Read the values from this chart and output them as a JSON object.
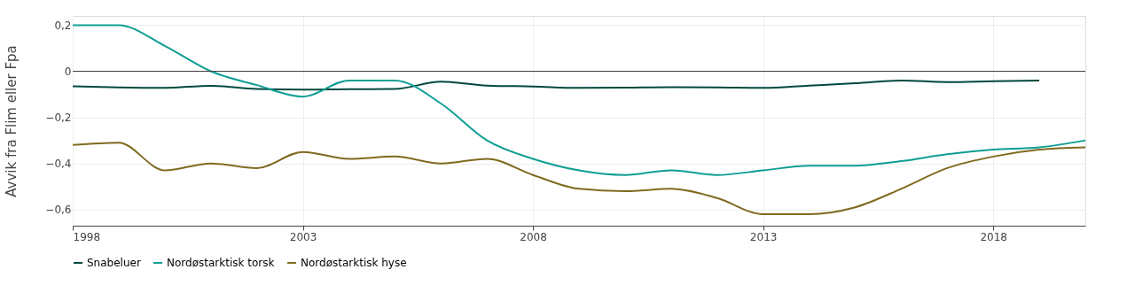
{
  "chart_data": {
    "type": "line",
    "ylabel": "Avvik fra Flim eller Fpa",
    "x": [
      1998,
      1999,
      2000,
      2001,
      2002,
      2003,
      2004,
      2005,
      2006,
      2007,
      2008,
      2009,
      2010,
      2011,
      2012,
      2013,
      2014,
      2015,
      2016,
      2017,
      2018,
      2019,
      2020
    ],
    "series": [
      {
        "name": "Snabeluer",
        "color": "#00493f",
        "values": [
          -0.065,
          -0.07,
          -0.072,
          -0.063,
          -0.077,
          -0.08,
          -0.078,
          -0.077,
          -0.045,
          -0.062,
          -0.066,
          -0.072,
          -0.071,
          -0.069,
          -0.07,
          -0.072,
          -0.062,
          -0.052,
          -0.04,
          -0.047,
          -0.043,
          -0.04,
          null
        ]
      },
      {
        "name": "Nordøstarktisk torsk",
        "color": "#0e9e94",
        "values": [
          0.2,
          0.2,
          0.11,
          0.0,
          -0.06,
          -0.11,
          -0.04,
          -0.04,
          -0.14,
          -0.3,
          -0.38,
          -0.43,
          -0.45,
          -0.43,
          -0.45,
          -0.43,
          -0.41,
          -0.41,
          -0.39,
          -0.36,
          -0.34,
          -0.33,
          -0.3
        ]
      },
      {
        "name": "Nordøstarktisk hyse",
        "color": "#7f6a1f",
        "values": [
          -0.32,
          -0.31,
          -0.43,
          -0.4,
          -0.42,
          -0.35,
          -0.38,
          -0.37,
          -0.4,
          -0.38,
          -0.45,
          -0.51,
          -0.52,
          -0.51,
          -0.55,
          -0.62,
          -0.62,
          -0.59,
          -0.51,
          -0.42,
          -0.37,
          -0.34,
          -0.33
        ]
      }
    ],
    "xlim": [
      1998,
      2020
    ],
    "xticks": [
      1998,
      2003,
      2008,
      2013,
      2018
    ],
    "ylim": [
      -0.67,
      0.24
    ],
    "yticks": [
      {
        "value": -0.6,
        "label": "−0,6"
      },
      {
        "value": -0.4,
        "label": "−0,4"
      },
      {
        "value": -0.2,
        "label": "−0,2"
      },
      {
        "value": 0,
        "label": "0"
      },
      {
        "value": 0.2,
        "label": "0,2"
      }
    ],
    "ref_lines": [
      {
        "axis": "y",
        "value": 0,
        "color": "#444444"
      }
    ],
    "grid": true,
    "legend": "bottom",
    "marker": "none",
    "line_style": "solid"
  }
}
